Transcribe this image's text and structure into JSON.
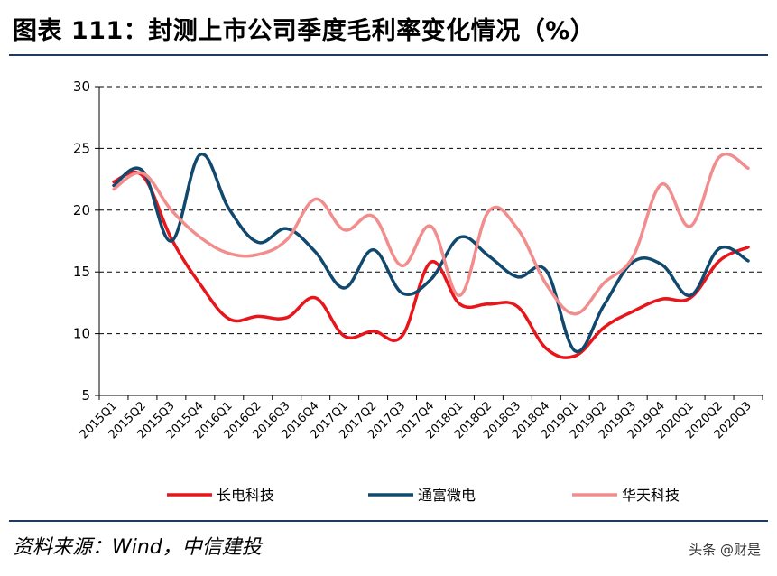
{
  "header": {
    "title": "图表 111：封测上市公司季度毛利率变化情况（%）"
  },
  "footer": {
    "source": "资料来源：Wind，中信建投",
    "watermark": "头条 @财是"
  },
  "chart_data": {
    "type": "line",
    "title": "图表 111：封测上市公司季度毛利率变化情况（%）",
    "xlabel": "",
    "ylabel": "",
    "ylim": [
      5,
      30
    ],
    "yticks": [
      5,
      10,
      15,
      20,
      25,
      30
    ],
    "grid": "horizontal-dashed",
    "legend": "bottom",
    "categories": [
      "2015Q1",
      "2015Q2",
      "2015Q3",
      "2015Q4",
      "2016Q1",
      "2016Q2",
      "2016Q3",
      "2016Q4",
      "2017Q1",
      "2017Q2",
      "2017Q3",
      "2017Q4",
      "2018Q1",
      "2018Q2",
      "2018Q3",
      "2018Q4",
      "2019Q1",
      "2019Q2",
      "2019Q3",
      "2019Q4",
      "2020Q1",
      "2020Q2",
      "2020Q3"
    ],
    "series": [
      {
        "name": "长电科技",
        "color": "#e8151b",
        "values": [
          22.3,
          22.8,
          17.7,
          14.0,
          11.2,
          11.4,
          11.3,
          12.9,
          9.8,
          10.2,
          9.8,
          15.8,
          12.4,
          12.4,
          12.2,
          8.8,
          8.2,
          10.5,
          11.8,
          12.8,
          12.9,
          15.9,
          17.0
        ]
      },
      {
        "name": "通富微电",
        "color": "#10486e",
        "values": [
          22.0,
          23.2,
          17.5,
          24.5,
          20.1,
          17.4,
          18.5,
          16.6,
          13.7,
          16.8,
          13.3,
          14.4,
          17.8,
          16.3,
          14.6,
          15.1,
          8.6,
          12.3,
          15.8,
          15.6,
          13.1,
          16.9,
          15.9
        ]
      },
      {
        "name": "华天科技",
        "color": "#f28d8d",
        "values": [
          21.7,
          23.0,
          20.0,
          17.8,
          16.5,
          16.4,
          17.6,
          20.9,
          18.4,
          19.5,
          15.5,
          18.7,
          13.1,
          19.9,
          18.5,
          14.0,
          11.6,
          14.1,
          16.2,
          22.1,
          18.7,
          24.3,
          23.4
        ]
      }
    ]
  }
}
